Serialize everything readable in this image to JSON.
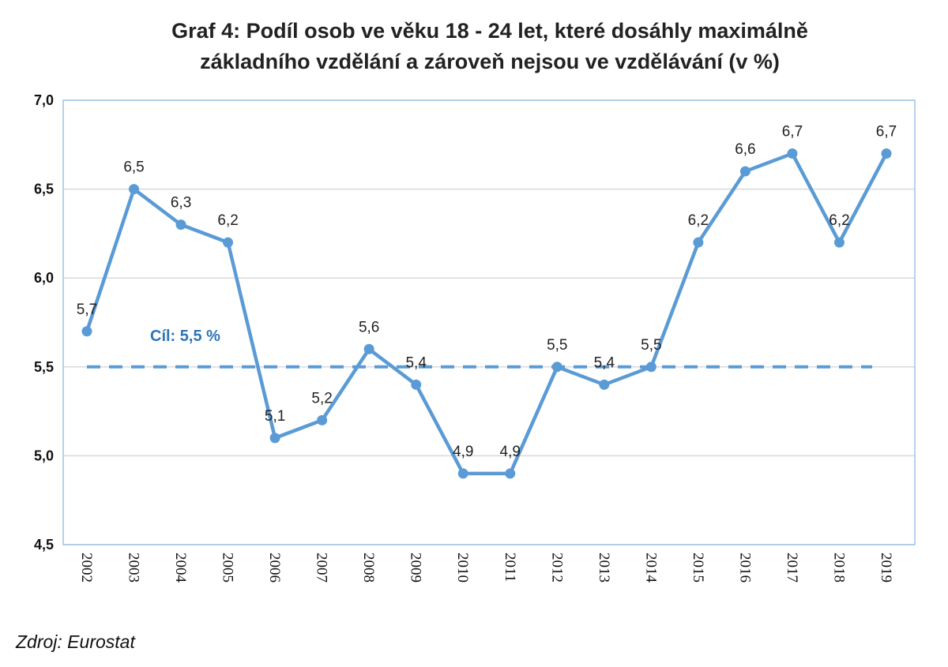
{
  "source_note": "Zdroj: Eurostat",
  "colors": {
    "series": "#5b9bd5",
    "target": "#5b9bd5",
    "target_label": "#2e75b6",
    "grid": "#d9d9d9",
    "frame": "#9dc3e6"
  },
  "chart_data": {
    "type": "line",
    "title": [
      "Graf 4: Podíl osob ve věku 18 - 24 let, které dosáhly maximálně",
      "základního vzdělání a zároveň nejsou ve vzdělávání (v %)"
    ],
    "xlabel": "",
    "ylabel": "",
    "categories": [
      "2002",
      "2003",
      "2004",
      "2005",
      "2006",
      "2007",
      "2008",
      "2009",
      "2010",
      "2011",
      "2012",
      "2013",
      "2014",
      "2015",
      "2016",
      "2017",
      "2018",
      "2019"
    ],
    "series": [
      {
        "values": [
          5.7,
          6.5,
          6.3,
          6.2,
          5.1,
          5.2,
          5.6,
          5.4,
          4.9,
          4.9,
          5.5,
          5.4,
          5.5,
          6.2,
          6.6,
          6.7,
          6.2,
          6.7
        ],
        "data_labels": [
          "5,7",
          "6,5",
          "6,3",
          "6,2",
          "5,1",
          "5,2",
          "5,6",
          "5,4",
          "4,9",
          "4,9",
          "5,5",
          "5,4",
          "5,5",
          "6,2",
          "6,6",
          "6,7",
          "6,2",
          "6,7"
        ]
      }
    ],
    "ylim": [
      4.5,
      7.0
    ],
    "yticks": [
      4.5,
      5.0,
      5.5,
      6.0,
      6.5,
      7.0
    ],
    "ytick_labels": [
      "4,5",
      "5,0",
      "5,5",
      "6,0",
      "6,5",
      "7,0"
    ],
    "grid": true,
    "target": {
      "value": 5.5,
      "label": "Cíl: 5,5 %",
      "style": "dashed"
    },
    "legend": "none"
  }
}
